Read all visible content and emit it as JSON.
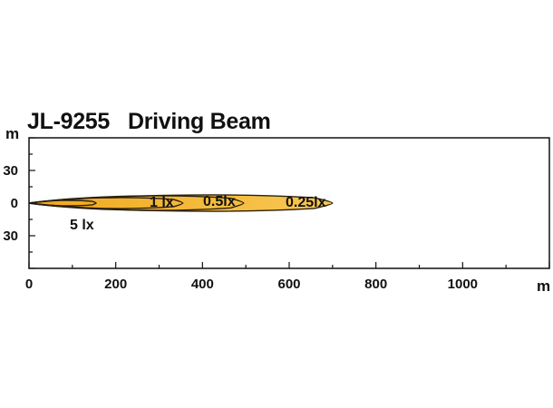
{
  "header": {
    "title": "JL-9255   Driving Beam"
  },
  "chart_data": {
    "type": "area",
    "title": "JL-9255   Driving Beam",
    "xlabel": "m",
    "ylabel": "m",
    "xlim": [
      0,
      1200
    ],
    "ylim": [
      -60,
      60
    ],
    "x_ticks": [
      0,
      200,
      400,
      600,
      800,
      1000
    ],
    "x_tick_labels": [
      "0",
      "200",
      "400",
      "600",
      "800",
      "1000"
    ],
    "y_ticks": [
      30,
      0,
      -30
    ],
    "y_tick_labels": [
      "30",
      "0",
      "30"
    ],
    "grid": false,
    "isolux_contours": [
      {
        "label": "0.25lx",
        "reach": 700,
        "half_width": 9
      },
      {
        "label": "0.5lx",
        "reach": 495,
        "half_width": 8
      },
      {
        "label": "1 lx",
        "reach": 355,
        "half_width": 6
      },
      {
        "label": "5 lx",
        "reach": 155,
        "half_width": 3
      }
    ],
    "colors": {
      "outer_fill": "#F7C853",
      "inner_fill": "#F0A81E",
      "outline": "#2A1F10",
      "axis": "#111111"
    }
  }
}
